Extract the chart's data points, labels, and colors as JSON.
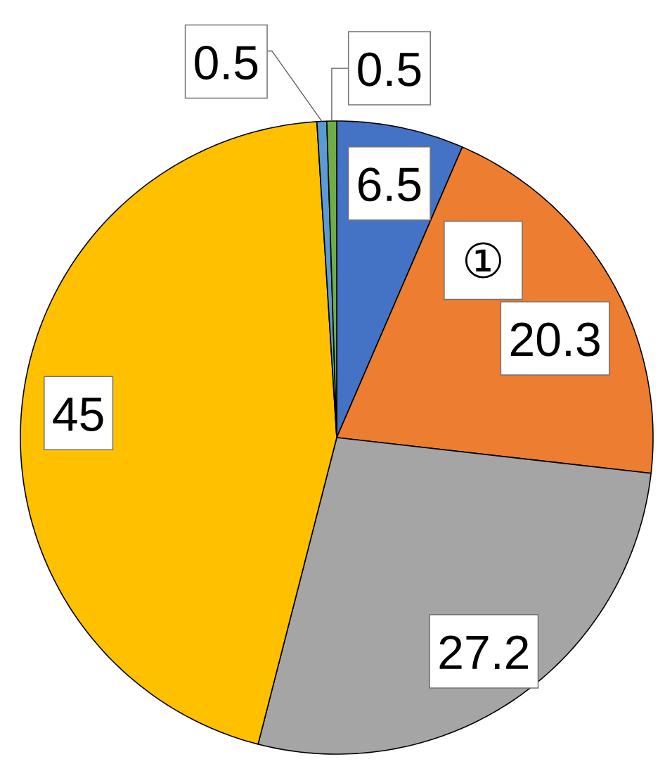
{
  "chart_data": {
    "type": "pie",
    "categories": [
      null,
      "①",
      null,
      null,
      null,
      null
    ],
    "values": [
      6.5,
      20.3,
      27.2,
      45,
      0.5,
      0.5
    ],
    "colors": [
      "#4472c4",
      "#ed7d31",
      "#a5a5a5",
      "#ffc000",
      "#5b9bd5",
      "#70ad47"
    ],
    "data_labels": true
  }
}
